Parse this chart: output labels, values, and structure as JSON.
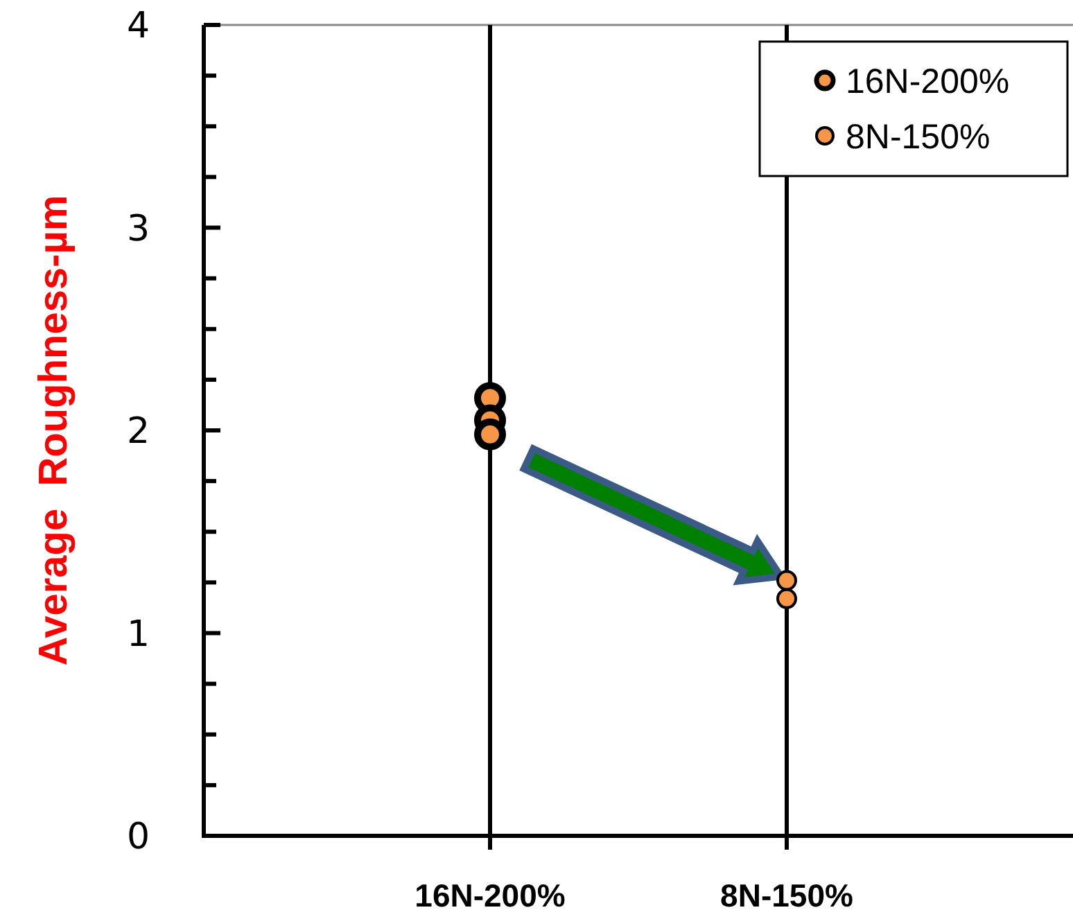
{
  "chart_data": {
    "type": "scatter",
    "ylabel": "Average  Roughness-µm",
    "categories": [
      "16N-200%",
      "8N-150%"
    ],
    "ylim": [
      0,
      4
    ],
    "yticks": [
      0,
      {
        "value": 0.25,
        "label": null
      },
      {
        "value": 0.5,
        "label": null
      },
      {
        "value": 0.75,
        "label": null
      },
      1,
      {
        "value": 1.25,
        "label": null
      },
      {
        "value": 1.5,
        "label": null
      },
      {
        "value": 1.75,
        "label": null
      },
      2,
      {
        "value": 2.25,
        "label": null
      },
      {
        "value": 2.5,
        "label": null
      },
      {
        "value": 2.75,
        "label": null
      },
      3,
      {
        "value": 3.25,
        "label": null
      },
      {
        "value": 3.5,
        "label": null
      },
      {
        "value": 3.75,
        "label": null
      },
      4
    ],
    "grid": "x",
    "legend": "top right",
    "marker": "circle",
    "series": [
      {
        "name": "16N-200%",
        "color": "#f79646",
        "x": [
          "16N-200%",
          "16N-200%",
          "16N-200%"
        ],
        "values": [
          2.16,
          2.05,
          1.98
        ]
      },
      {
        "name": "8N-150%",
        "color": "#f79646",
        "x": [
          "8N-150%",
          "8N-150%"
        ],
        "values": [
          1.26,
          1.17
        ]
      }
    ]
  }
}
